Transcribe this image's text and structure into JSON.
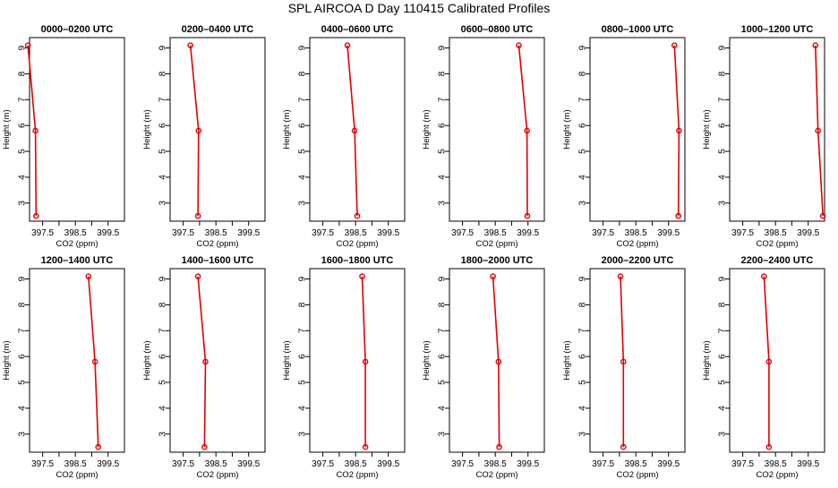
{
  "title": "SPL AIRCOA D   Day 110415   Calibrated Profiles",
  "colors": {
    "series": "#e00000",
    "axes": "#000000",
    "background": "#ffffff"
  },
  "chart_data": [
    {
      "type": "line",
      "title": "0000–0200 UTC",
      "xlabel": "CO2 (ppm)",
      "ylabel": "Height (m)",
      "xlim": [
        397.1,
        400.0
      ],
      "ylim": [
        2.3,
        9.4
      ],
      "xticks": [
        "397.5",
        "398.5",
        "399.5"
      ],
      "yticks": [
        "3",
        "4",
        "5",
        "6",
        "7",
        "8",
        "9"
      ],
      "x": [
        397.05,
        397.28,
        397.3
      ],
      "y": [
        9.1,
        5.8,
        2.5
      ]
    },
    {
      "type": "line",
      "title": "0200–0400 UTC",
      "xlabel": "CO2 (ppm)",
      "ylabel": "Height (m)",
      "xlim": [
        397.1,
        400.0
      ],
      "ylim": [
        2.3,
        9.4
      ],
      "xticks": [
        "397.5",
        "398.5",
        "399.5"
      ],
      "yticks": [
        "3",
        "4",
        "5",
        "6",
        "7",
        "8",
        "9"
      ],
      "x": [
        397.72,
        397.97,
        397.95
      ],
      "y": [
        9.1,
        5.8,
        2.5
      ]
    },
    {
      "type": "line",
      "title": "0400–0600 UTC",
      "xlabel": "CO2 (ppm)",
      "ylabel": "Height (m)",
      "xlim": [
        397.1,
        400.0
      ],
      "ylim": [
        2.3,
        9.4
      ],
      "xticks": [
        "397.5",
        "398.5",
        "399.5"
      ],
      "yticks": [
        "3",
        "4",
        "5",
        "6",
        "7",
        "8",
        "9"
      ],
      "x": [
        398.25,
        398.47,
        398.55
      ],
      "y": [
        9.1,
        5.8,
        2.5
      ]
    },
    {
      "type": "line",
      "title": "0600–0800 UTC",
      "xlabel": "CO2 (ppm)",
      "ylabel": "Height (m)",
      "xlim": [
        397.1,
        400.0
      ],
      "ylim": [
        2.3,
        9.4
      ],
      "xticks": [
        "397.5",
        "398.5",
        "399.5"
      ],
      "yticks": [
        "3",
        "4",
        "5",
        "6",
        "7",
        "8",
        "9"
      ],
      "x": [
        399.22,
        399.47,
        399.48
      ],
      "y": [
        9.1,
        5.8,
        2.5
      ]
    },
    {
      "type": "line",
      "title": "0800–1000 UTC",
      "xlabel": "CO2 (ppm)",
      "ylabel": "Height (m)",
      "xlim": [
        397.1,
        400.0
      ],
      "ylim": [
        2.3,
        9.4
      ],
      "xticks": [
        "397.5",
        "398.5",
        "399.5"
      ],
      "yticks": [
        "3",
        "4",
        "5",
        "6",
        "7",
        "8",
        "9"
      ],
      "x": [
        399.68,
        399.82,
        399.8
      ],
      "y": [
        9.1,
        5.8,
        2.5
      ]
    },
    {
      "type": "line",
      "title": "1000–1200 UTC",
      "xlabel": "CO2 (ppm)",
      "ylabel": "Height (m)",
      "xlim": [
        397.1,
        400.0
      ],
      "ylim": [
        2.3,
        9.4
      ],
      "xticks": [
        "397.5",
        "398.5",
        "399.5"
      ],
      "yticks": [
        "3",
        "4",
        "5",
        "6",
        "7",
        "8",
        "9"
      ],
      "x": [
        399.72,
        399.8,
        399.95
      ],
      "y": [
        9.1,
        5.8,
        2.5
      ]
    },
    {
      "type": "line",
      "title": "1200–1400 UTC",
      "xlabel": "CO2 (ppm)",
      "ylabel": "Height (m)",
      "xlim": [
        397.1,
        400.0
      ],
      "ylim": [
        2.3,
        9.4
      ],
      "xticks": [
        "397.5",
        "398.5",
        "399.5"
      ],
      "yticks": [
        "3",
        "4",
        "5",
        "6",
        "7",
        "8",
        "9"
      ],
      "x": [
        398.9,
        399.1,
        399.2
      ],
      "y": [
        9.1,
        5.8,
        2.5
      ]
    },
    {
      "type": "line",
      "title": "1400–1600 UTC",
      "xlabel": "CO2 (ppm)",
      "ylabel": "Height (m)",
      "xlim": [
        397.1,
        400.0
      ],
      "ylim": [
        2.3,
        9.4
      ],
      "xticks": [
        "397.5",
        "398.5",
        "399.5"
      ],
      "yticks": [
        "3",
        "4",
        "5",
        "6",
        "7",
        "8",
        "9"
      ],
      "x": [
        397.95,
        398.18,
        398.15
      ],
      "y": [
        9.1,
        5.8,
        2.5
      ]
    },
    {
      "type": "line",
      "title": "1600–1800 UTC",
      "xlabel": "CO2 (ppm)",
      "ylabel": "Height (m)",
      "xlim": [
        397.1,
        400.0
      ],
      "ylim": [
        2.3,
        9.4
      ],
      "xticks": [
        "397.5",
        "398.5",
        "399.5"
      ],
      "yticks": [
        "3",
        "4",
        "5",
        "6",
        "7",
        "8",
        "9"
      ],
      "x": [
        398.7,
        398.8,
        398.8
      ],
      "y": [
        9.1,
        5.8,
        2.5
      ]
    },
    {
      "type": "line",
      "title": "1800–2000 UTC",
      "xlabel": "CO2 (ppm)",
      "ylabel": "Height (m)",
      "xlim": [
        397.1,
        400.0
      ],
      "ylim": [
        2.3,
        9.4
      ],
      "xticks": [
        "397.5",
        "398.5",
        "399.5"
      ],
      "yticks": [
        "3",
        "4",
        "5",
        "6",
        "7",
        "8",
        "9"
      ],
      "x": [
        398.43,
        398.6,
        398.62
      ],
      "y": [
        9.1,
        5.8,
        2.5
      ]
    },
    {
      "type": "line",
      "title": "2000–2200 UTC",
      "xlabel": "CO2 (ppm)",
      "ylabel": "Height (m)",
      "xlim": [
        397.1,
        400.0
      ],
      "ylim": [
        2.3,
        9.4
      ],
      "xticks": [
        "397.5",
        "398.5",
        "399.5"
      ],
      "yticks": [
        "3",
        "4",
        "5",
        "6",
        "7",
        "8",
        "9"
      ],
      "x": [
        398.03,
        398.12,
        398.12
      ],
      "y": [
        9.1,
        5.8,
        2.5
      ]
    },
    {
      "type": "line",
      "title": "2200–2400 UTC",
      "xlabel": "CO2 (ppm)",
      "ylabel": "Height (m)",
      "xlim": [
        397.1,
        400.0
      ],
      "ylim": [
        2.3,
        9.4
      ],
      "xticks": [
        "397.5",
        "398.5",
        "399.5"
      ],
      "yticks": [
        "3",
        "4",
        "5",
        "6",
        "7",
        "8",
        "9"
      ],
      "x": [
        398.15,
        398.3,
        398.3
      ],
      "y": [
        9.1,
        5.8,
        2.5
      ]
    }
  ]
}
